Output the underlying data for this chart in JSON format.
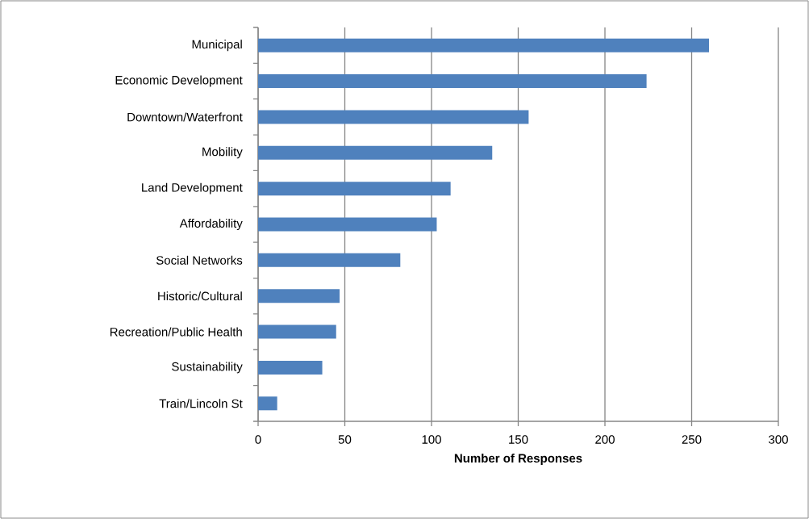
{
  "chart_data": {
    "type": "bar",
    "orientation": "horizontal",
    "xlabel": "Number of Responses",
    "categories": [
      "Municipal",
      "Economic Development",
      "Downtown/Waterfront",
      "Mobility",
      "Land Development",
      "Affordability",
      "Social Networks",
      "Historic/Cultural",
      "Recreation/Public Health",
      "Sustainability",
      "Train/Lincoln St"
    ],
    "values": [
      260,
      224,
      156,
      135,
      111,
      103,
      82,
      47,
      45,
      37,
      11
    ],
    "color": "#4f81bd",
    "xlim": [
      0,
      300
    ],
    "xticks": [
      0,
      50,
      100,
      150,
      200,
      250,
      300
    ],
    "grid": "x"
  }
}
